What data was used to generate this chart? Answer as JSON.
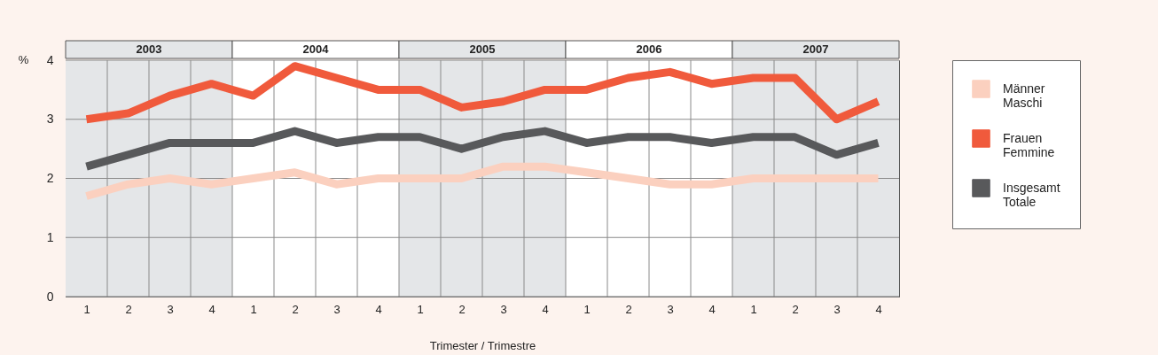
{
  "chart_data": {
    "type": "line",
    "xlabel": "Trimester / Trimestre",
    "ylabel": "%",
    "categories": [
      "1",
      "2",
      "3",
      "4",
      "1",
      "2",
      "3",
      "4",
      "1",
      "2",
      "3",
      "4",
      "1",
      "2",
      "3",
      "4",
      "1",
      "2",
      "3",
      "4"
    ],
    "ylim": [
      0,
      4
    ],
    "yticks": [
      0,
      1,
      2,
      3,
      4
    ],
    "grid": true,
    "legend": "right",
    "marker": "none",
    "line_style": "solid",
    "annotations": [
      "2003",
      "2004",
      "2005",
      "2006",
      "2007"
    ],
    "series": [
      {
        "name": "Männer Maschi",
        "color": "#fbd0bf",
        "values": [
          1.7,
          1.9,
          2.0,
          1.9,
          2.0,
          2.1,
          1.9,
          2.0,
          2.0,
          2.0,
          2.2,
          2.2,
          2.1,
          2.0,
          1.9,
          1.9,
          2.0,
          2.0,
          2.0,
          2.0
        ]
      },
      {
        "name": "Frauen Femmine",
        "color": "#f05a3c",
        "values": [
          3.0,
          3.1,
          3.4,
          3.6,
          3.4,
          3.9,
          3.7,
          3.5,
          3.5,
          3.2,
          3.3,
          3.5,
          3.5,
          3.7,
          3.8,
          3.6,
          3.7,
          3.7,
          3.0,
          3.3
        ]
      },
      {
        "name": "Insgesamt Totale",
        "color": "#58595b",
        "values": [
          2.2,
          2.4,
          2.6,
          2.6,
          2.6,
          2.8,
          2.6,
          2.7,
          2.7,
          2.5,
          2.7,
          2.8,
          2.6,
          2.7,
          2.7,
          2.6,
          2.7,
          2.7,
          2.4,
          2.6
        ]
      }
    ]
  }
}
